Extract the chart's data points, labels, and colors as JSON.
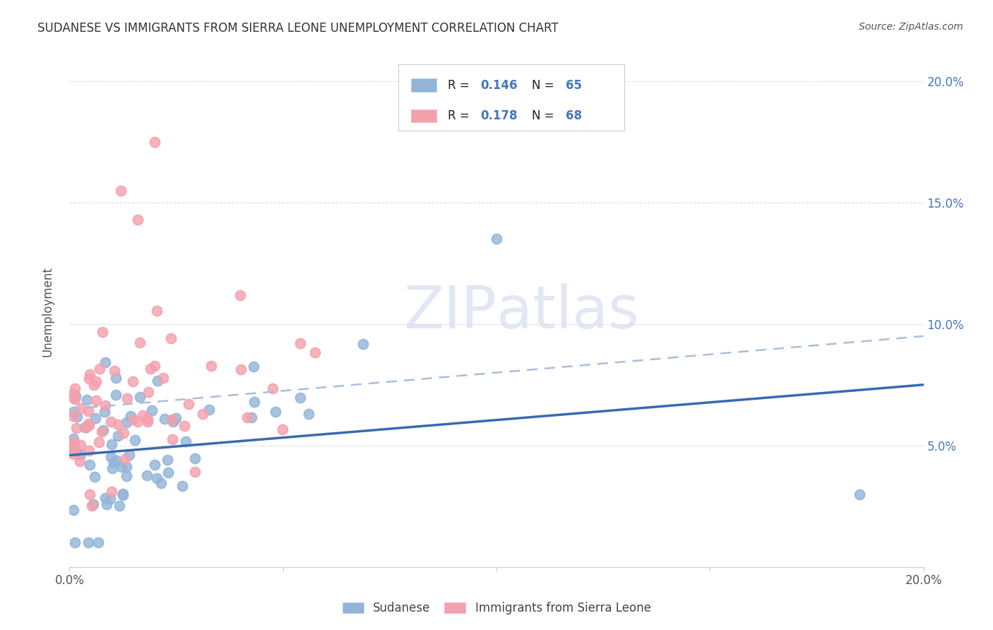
{
  "title": "SUDANESE VS IMMIGRANTS FROM SIERRA LEONE UNEMPLOYMENT CORRELATION CHART",
  "source": "Source: ZipAtlas.com",
  "ylabel": "Unemployment",
  "xmin": 0.0,
  "xmax": 0.2,
  "ymin": 0.0,
  "ymax": 0.21,
  "ytick_vals": [
    0.0,
    0.05,
    0.1,
    0.15,
    0.2
  ],
  "ytick_labels": [
    "",
    "5.0%",
    "10.0%",
    "15.0%",
    "20.0%"
  ],
  "xtick_vals": [
    0.0,
    0.05,
    0.1,
    0.15,
    0.2
  ],
  "xtick_labels": [
    "0.0%",
    "",
    "",
    "",
    "20.0%"
  ],
  "legend_label1": "Sudanese",
  "legend_label2": "Immigrants from Sierra Leone",
  "r1": "0.146",
  "n1": "65",
  "r2": "0.178",
  "n2": "68",
  "color1": "#92B4D7",
  "color2": "#F4A0AD",
  "trend_color1": "#3A6AB0",
  "trend_color2": "#D46070",
  "trend_color1_light": "#AABEDD",
  "background_color": "#FFFFFF",
  "grid_color": "#DDDDDD",
  "tick_color": "#4477BB",
  "text_color": "#222222",
  "watermark_color": "#D0D8EE",
  "legend_text_color": "#4477BB"
}
